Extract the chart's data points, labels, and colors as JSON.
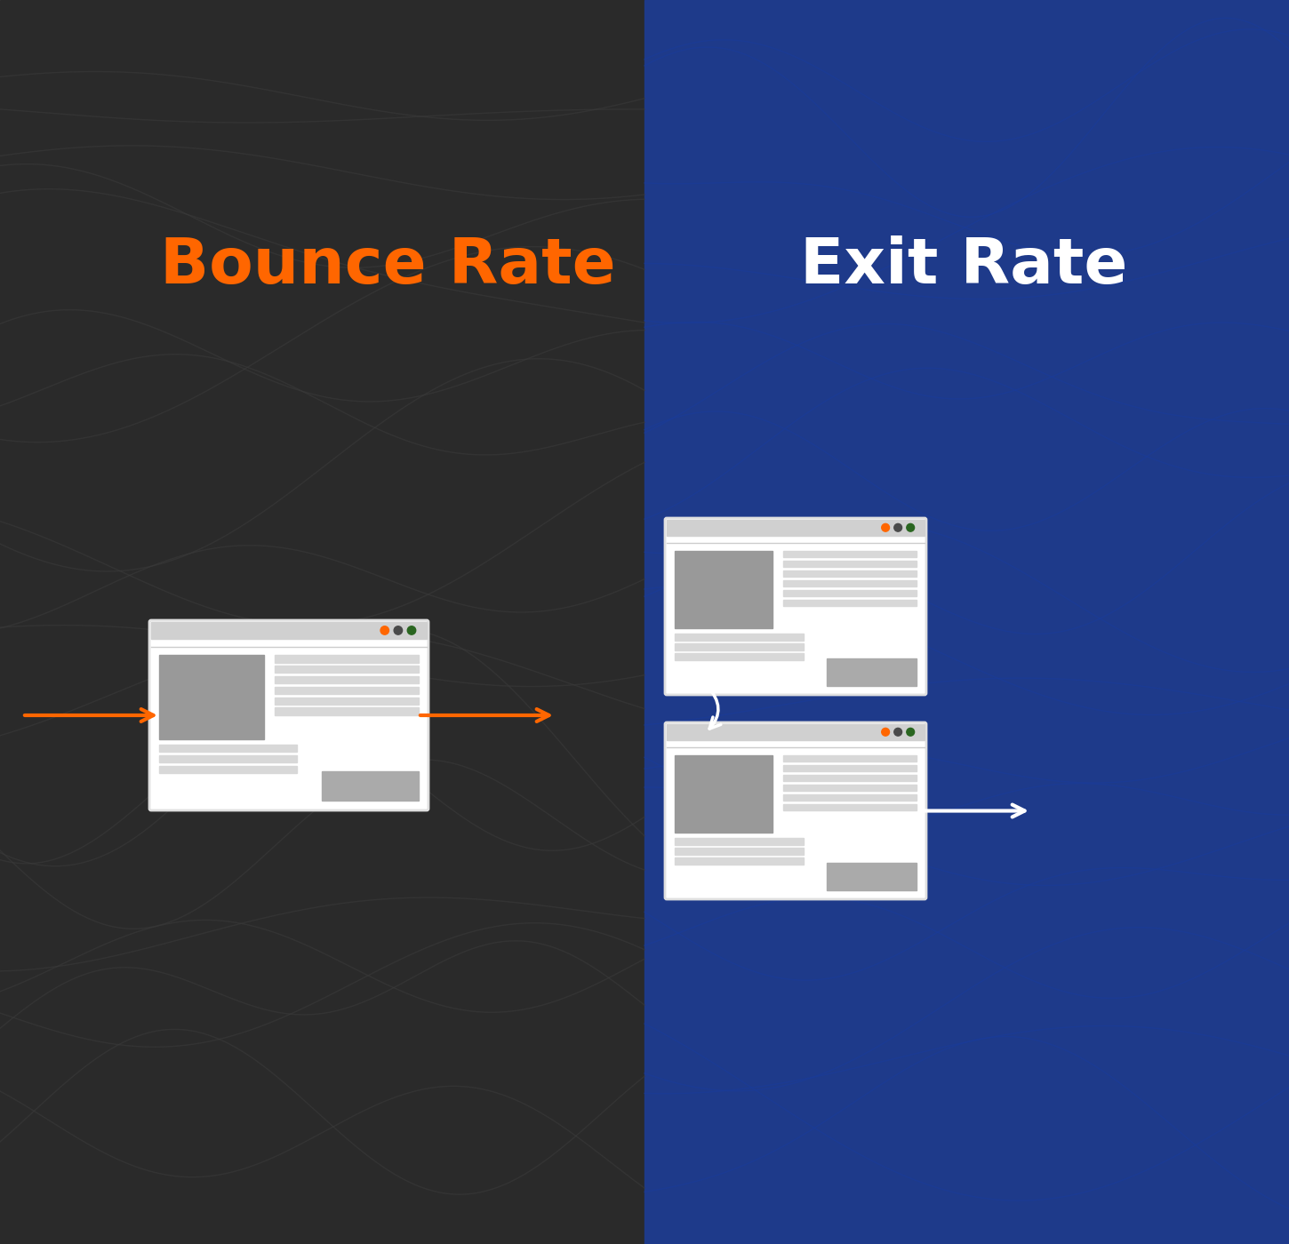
{
  "left_bg_color": "#2a2a2a",
  "right_bg_color": "#1e3a8a",
  "left_title": "Bounce Rate",
  "right_title": "Exit Rate",
  "left_title_color": "#ff6600",
  "right_title_color": "#ffffff",
  "title_fontsize": 52,
  "title_fontweight": "bold",
  "browser_bg": "#f0f0f0",
  "browser_frame": "#ffffff",
  "browser_bar": "#d0d0d0",
  "img_block_color": "#999999",
  "text_line_color": "#cccccc",
  "btn_block_color": "#aaaaaa",
  "orange_arrow": "#ff6600",
  "white_arrow": "#ffffff",
  "dot1": "#ff6600",
  "dot2": "#4a4a4a",
  "dot3": "#2a6620",
  "topo_line_color_dark": "#3a3a3a",
  "topo_line_color_blue": "#1a3a9a"
}
